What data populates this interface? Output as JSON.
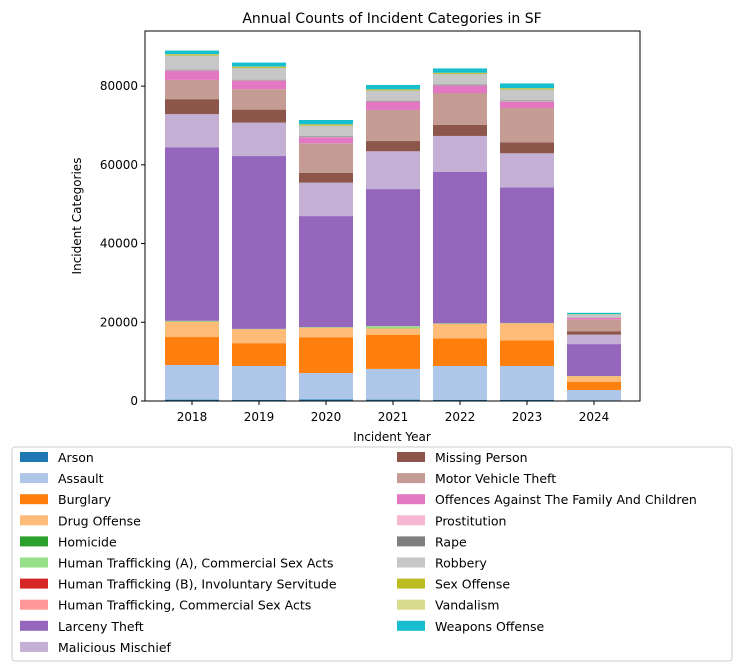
{
  "chart_data": {
    "type": "bar",
    "stacked": true,
    "title": "Annual Counts of Incident Categories in SF",
    "xlabel": "Incident Year",
    "ylabel": "Incident Categories",
    "ylim": [
      0,
      94000
    ],
    "yticks": [
      0,
      20000,
      40000,
      60000,
      80000
    ],
    "grid": false,
    "legend_position": "bottom",
    "categories": [
      "2018",
      "2019",
      "2020",
      "2021",
      "2022",
      "2023",
      "2024"
    ],
    "series": [
      {
        "name": "Arson",
        "color": "#1f77b4",
        "values": [
          350,
          300,
          400,
          350,
          300,
          300,
          100
        ]
      },
      {
        "name": "Assault",
        "color": "#aec7e8",
        "values": [
          8800,
          8600,
          6700,
          7800,
          8600,
          8600,
          2700
        ]
      },
      {
        "name": "Burglary",
        "color": "#ff7f0e",
        "values": [
          7100,
          5800,
          9100,
          8700,
          7000,
          6500,
          2100
        ]
      },
      {
        "name": "Drug Offense",
        "color": "#ffbb78",
        "values": [
          3900,
          3500,
          2400,
          1600,
          3700,
          4300,
          1400
        ]
      },
      {
        "name": "Homicide",
        "color": "#2ca02c",
        "values": [
          50,
          50,
          50,
          60,
          60,
          50,
          20
        ]
      },
      {
        "name": "Human Trafficking (A), Commercial Sex Acts",
        "color": "#98df8a",
        "values": [
          150,
          50,
          100,
          500,
          50,
          50,
          20
        ]
      },
      {
        "name": "Human Trafficking (B), Involuntary Servitude",
        "color": "#d62728",
        "values": [
          10,
          10,
          10,
          10,
          10,
          10,
          5
        ]
      },
      {
        "name": "Human Trafficking, Commercial Sex Acts",
        "color": "#ff9896",
        "values": [
          20,
          20,
          20,
          20,
          20,
          20,
          10
        ]
      },
      {
        "name": "Larceny Theft",
        "color": "#9467bd",
        "values": [
          44100,
          43900,
          28200,
          34800,
          38500,
          34400,
          8100
        ]
      },
      {
        "name": "Malicious Mischief",
        "color": "#c5b0d5",
        "values": [
          8400,
          8500,
          8500,
          9600,
          9100,
          8700,
          2400
        ]
      },
      {
        "name": "Missing Person",
        "color": "#8c564b",
        "values": [
          3800,
          3300,
          2500,
          2600,
          2800,
          2800,
          800
        ]
      },
      {
        "name": "Motor Vehicle Theft",
        "color": "#c49c94",
        "values": [
          4900,
          5200,
          7500,
          7900,
          8100,
          8700,
          3100
        ]
      },
      {
        "name": "Offences Against The Family And Children",
        "color": "#e377c2",
        "values": [
          2300,
          2100,
          1500,
          2100,
          1900,
          1600,
          400
        ]
      },
      {
        "name": "Prostitution",
        "color": "#f7b6d2",
        "values": [
          100,
          100,
          60,
          50,
          50,
          100,
          30
        ]
      },
      {
        "name": "Rape",
        "color": "#7f7f7f",
        "values": [
          200,
          200,
          200,
          200,
          200,
          200,
          60
        ]
      },
      {
        "name": "Robbery",
        "color": "#c7c7c7",
        "values": [
          3600,
          3000,
          2700,
          2600,
          2700,
          2800,
          700
        ]
      },
      {
        "name": "Sex Offense",
        "color": "#bcbd22",
        "values": [
          300,
          300,
          300,
          250,
          250,
          300,
          90
        ]
      },
      {
        "name": "Vandalism",
        "color": "#dbdb8d",
        "values": [
          50,
          50,
          50,
          50,
          50,
          50,
          20
        ]
      },
      {
        "name": "Weapons Offense",
        "color": "#17becf",
        "values": [
          900,
          1000,
          1100,
          1100,
          1100,
          1200,
          350
        ]
      }
    ]
  }
}
